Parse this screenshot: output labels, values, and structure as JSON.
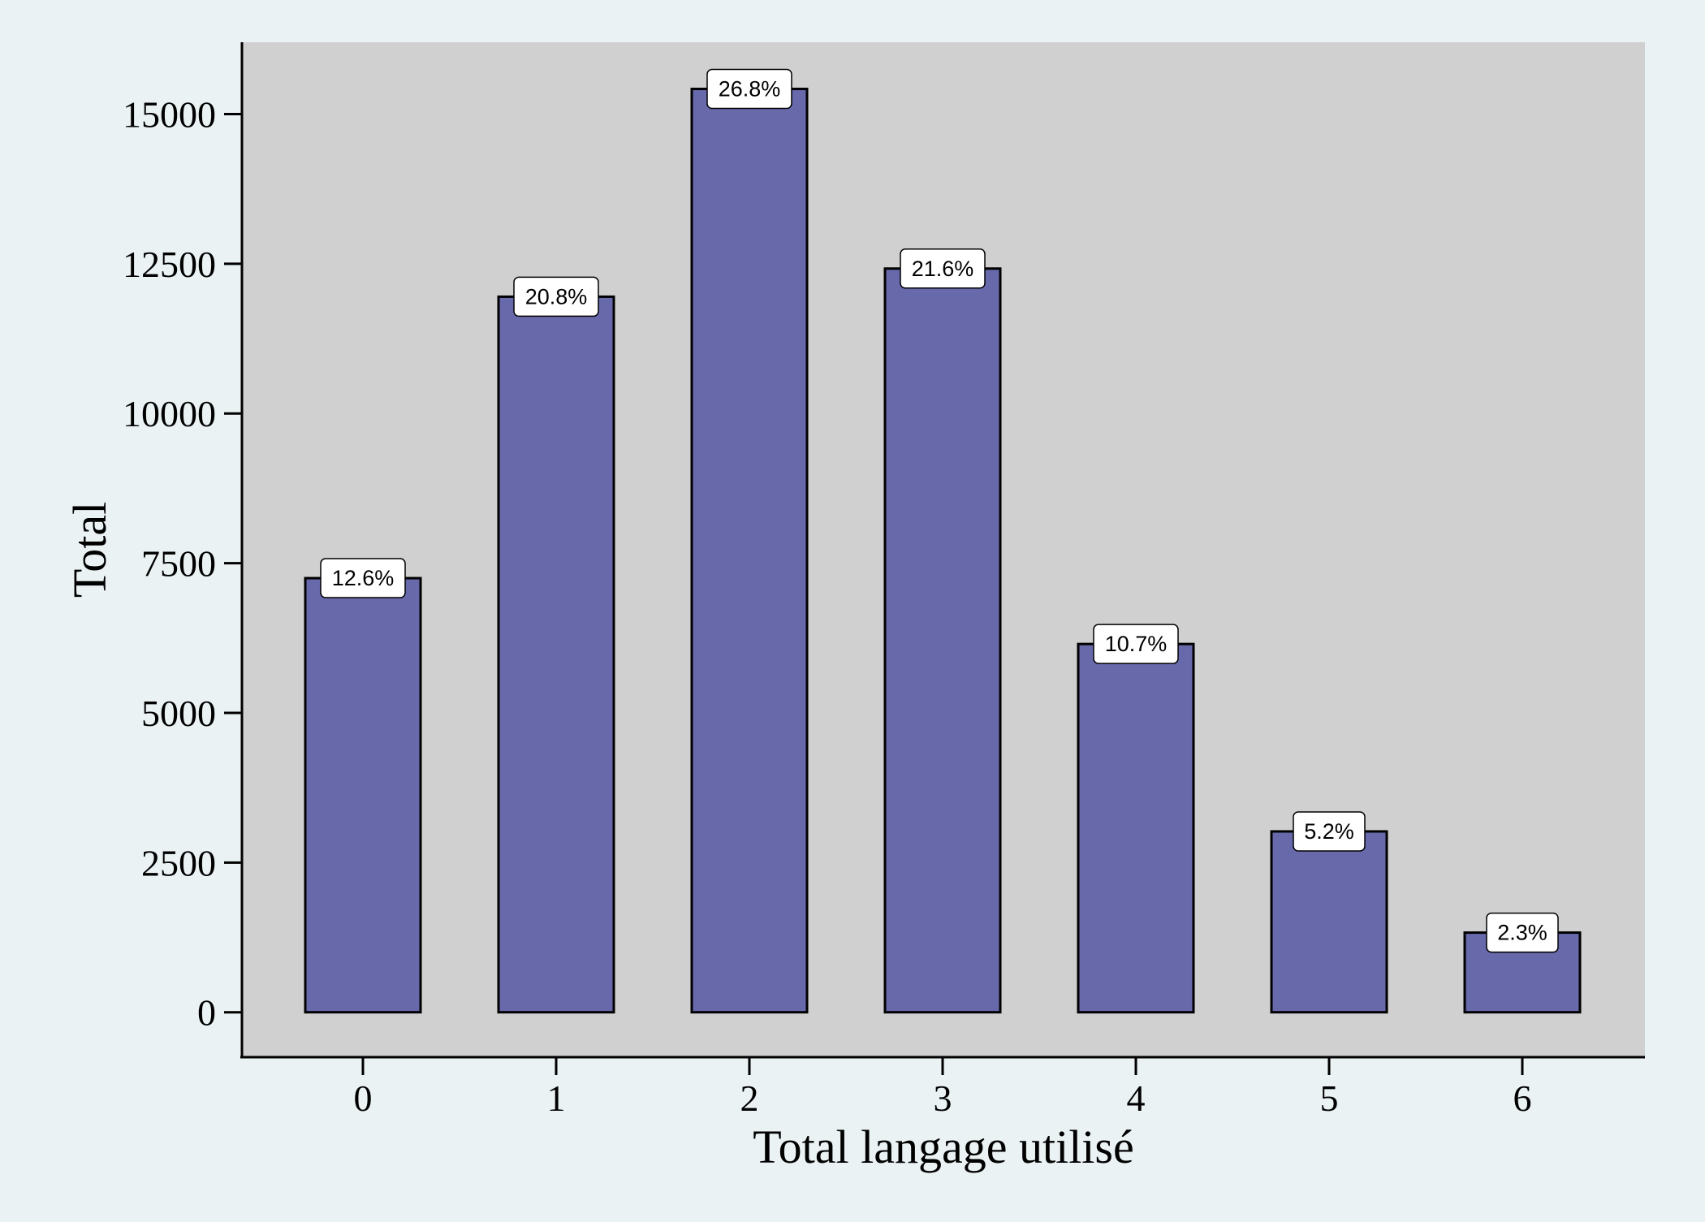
{
  "chart_data": {
    "type": "bar",
    "title": "",
    "xlabel": "Total langage utilisé",
    "ylabel": "Total",
    "categories": [
      "0",
      "1",
      "2",
      "3",
      "4",
      "5",
      "6"
    ],
    "values": [
      7250,
      11950,
      15420,
      12420,
      6150,
      3020,
      1330
    ],
    "data_labels": [
      "12.6%",
      "20.8%",
      "26.8%",
      "21.6%",
      "10.7%",
      "5.2%",
      "2.3%"
    ],
    "ylim": [
      -750,
      16200
    ],
    "yticks": [
      0,
      2500,
      5000,
      7500,
      10000,
      12500,
      15000
    ],
    "ytick_labels": [
      "0",
      "2500",
      "5000",
      "7500",
      "10000",
      "12500",
      "15000"
    ],
    "grid": false,
    "legend": "none",
    "colors": {
      "page_background": "#eaf2f3",
      "plot_background": "#d0d0d0",
      "bar_fill": "#6769ab",
      "bar_stroke": "#000000",
      "label_box_fill": "#ffffff",
      "axis": "#000000"
    }
  }
}
